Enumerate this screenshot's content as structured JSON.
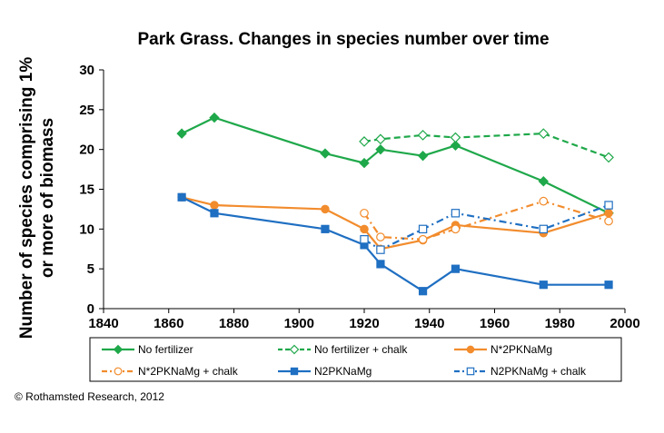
{
  "chart_data": {
    "type": "line",
    "title": "Park Grass. Changes in species number over time",
    "ylabel_line1": "Number of species comprising 1%",
    "ylabel_line2": "or more of biomass",
    "xlabel": "",
    "xlim": [
      1840,
      2000
    ],
    "ylim": [
      0,
      30
    ],
    "xticks": [
      1840,
      1860,
      1880,
      1900,
      1920,
      1940,
      1960,
      1980,
      2000
    ],
    "yticks": [
      0,
      5,
      10,
      15,
      20,
      25,
      30
    ],
    "grid": false,
    "legend_position": "bottom",
    "series": [
      {
        "name": "No fertilizer",
        "color": "#1fa84a",
        "dash": "solid",
        "marker": "diamond",
        "filled": true,
        "points": [
          [
            1864,
            22
          ],
          [
            1874,
            24
          ],
          [
            1908,
            19.5
          ],
          [
            1920,
            18.3
          ],
          [
            1925,
            20
          ],
          [
            1938,
            19.2
          ],
          [
            1948,
            20.5
          ],
          [
            1975,
            16
          ],
          [
            1995,
            12
          ]
        ]
      },
      {
        "name": "No fertilizer + chalk",
        "color": "#1fa84a",
        "dash": "dash",
        "marker": "diamond",
        "filled": false,
        "points": [
          [
            1920,
            21
          ],
          [
            1925,
            21.3
          ],
          [
            1938,
            21.8
          ],
          [
            1948,
            21.5
          ],
          [
            1975,
            22
          ],
          [
            1995,
            19
          ]
        ]
      },
      {
        "name": "N*2PKNaMg",
        "color": "#f28c2d",
        "dash": "solid",
        "marker": "circle",
        "filled": true,
        "points": [
          [
            1864,
            14
          ],
          [
            1874,
            13
          ],
          [
            1908,
            12.5
          ],
          [
            1920,
            10
          ],
          [
            1925,
            7.5
          ],
          [
            1938,
            8.6
          ],
          [
            1948,
            10.5
          ],
          [
            1975,
            9.5
          ],
          [
            1995,
            12
          ]
        ]
      },
      {
        "name": "N*2PKNaMg + chalk",
        "color": "#f28c2d",
        "dash": "dashdot",
        "marker": "circle",
        "filled": false,
        "points": [
          [
            1920,
            12
          ],
          [
            1925,
            9
          ],
          [
            1938,
            8.7
          ],
          [
            1948,
            10
          ],
          [
            1975,
            13.5
          ],
          [
            1995,
            11
          ]
        ]
      },
      {
        "name": "N2PKNaMg",
        "color": "#1f6fc2",
        "dash": "solid",
        "marker": "square",
        "filled": true,
        "points": [
          [
            1864,
            14
          ],
          [
            1874,
            12
          ],
          [
            1908,
            10
          ],
          [
            1920,
            8
          ],
          [
            1925,
            5.6
          ],
          [
            1938,
            2.2
          ],
          [
            1948,
            5
          ],
          [
            1975,
            3
          ],
          [
            1995,
            3
          ]
        ]
      },
      {
        "name": "N2PKNaMg + chalk",
        "color": "#1f6fc2",
        "dash": "dashdot",
        "marker": "square",
        "filled": false,
        "points": [
          [
            1920,
            8.7
          ],
          [
            1925,
            7.4
          ],
          [
            1938,
            10
          ],
          [
            1948,
            12
          ],
          [
            1975,
            10
          ],
          [
            1995,
            13
          ]
        ]
      }
    ]
  },
  "footer": {
    "copyright": "© Rothamsted Research, 2012"
  }
}
